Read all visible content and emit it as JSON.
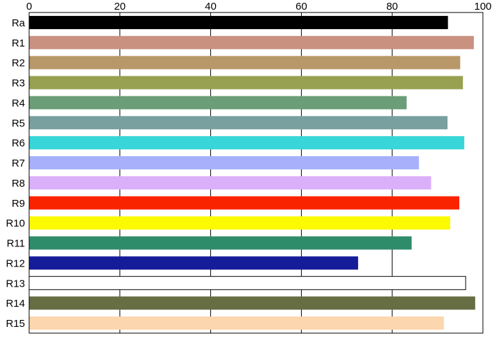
{
  "chart_data": {
    "type": "bar",
    "orientation": "horizontal",
    "title": "",
    "xlabel": "",
    "ylabel": "",
    "xlim": [
      0,
      100
    ],
    "x_ticks": [
      0,
      20,
      40,
      60,
      80,
      100
    ],
    "x_tick_labels": [
      "0",
      "20",
      "40",
      "60",
      "80",
      "100"
    ],
    "x_axis_position": "top",
    "grid": "vertical",
    "legend": "none",
    "categories": [
      "Ra",
      "R1",
      "R2",
      "R3",
      "R4",
      "R5",
      "R6",
      "R7",
      "R8",
      "R9",
      "R10",
      "R11",
      "R12",
      "R13",
      "R14",
      "R15"
    ],
    "values": [
      92.3,
      98.0,
      95.0,
      95.6,
      83.2,
      92.2,
      95.9,
      85.9,
      88.6,
      94.8,
      92.8,
      84.3,
      72.5,
      96.2,
      98.3,
      91.4
    ],
    "colors": [
      "#000000",
      "#c99180",
      "#b89868",
      "#98a052",
      "#6b9e78",
      "#799f9f",
      "#38d6d8",
      "#a8b0fc",
      "#dbb0fa",
      "#fa2300",
      "#fcfa00",
      "#2e8c6a",
      "#141c98",
      "#ffffff",
      "#686e44",
      "#fcd6ae"
    ]
  }
}
